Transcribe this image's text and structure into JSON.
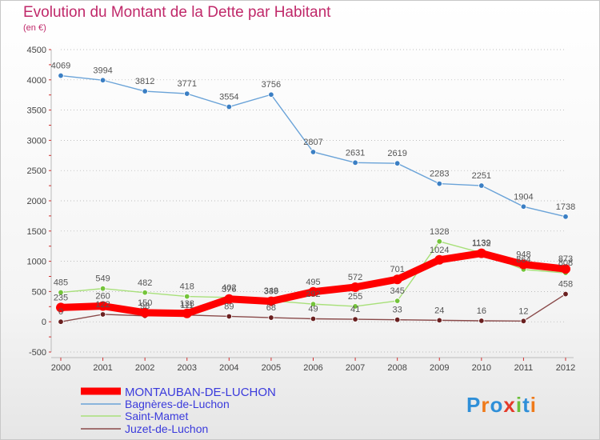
{
  "title": "Evolution du Montant de la Dette par Habitant",
  "subtitle": "(en €)",
  "logo_text": "Proxiti",
  "colors": {
    "title": "#c0296a",
    "grid": "#aaaaaa",
    "tick_red": "#d03030",
    "legend_text": "#3a3adc"
  },
  "chart_data": {
    "type": "line",
    "x": [
      "2000",
      "2001",
      "2002",
      "2003",
      "2004",
      "2005",
      "2006",
      "2007",
      "2008",
      "2009",
      "2010",
      "2011",
      "2012"
    ],
    "ylim": [
      -500,
      4500
    ],
    "yticks": [
      -500,
      0,
      500,
      1000,
      1500,
      2000,
      2500,
      3000,
      3500,
      4000,
      4500
    ],
    "grid": "horizontal dotted",
    "legend_position": "bottom-left",
    "series": [
      {
        "name": "MONTAUBAN-DE-LUCHON",
        "color": "#ff0000",
        "marker": "#ff0000",
        "values": [
          235,
          260,
          150,
          138,
          376,
          339,
          495,
          572,
          701,
          1024,
          1132,
          948,
          873
        ],
        "labels": [
          "235",
          "260",
          "150",
          "138",
          "376",
          "339",
          "495",
          "572",
          "701",
          "1024",
          "1132",
          "948",
          "873"
        ]
      },
      {
        "name": "Bagnères-de-Luchon",
        "color": "#6aa3d8",
        "marker": "#3b7fc4",
        "values": [
          4069,
          3994,
          3812,
          3771,
          3554,
          3756,
          2807,
          2631,
          2619,
          2283,
          2251,
          1904,
          1738
        ],
        "labels": [
          "4069",
          "3994",
          "3812",
          "3771",
          "3554",
          "3756",
          "2807",
          "2631",
          "2619",
          "2283",
          "2251",
          "1904",
          "1738"
        ]
      },
      {
        "name": "Saint-Mamet",
        "color": "#a8e07a",
        "marker": "#74c43a",
        "values": [
          485,
          549,
          482,
          418,
          402,
          348,
          292,
          255,
          345,
          1328,
          1139,
          864,
          808
        ],
        "labels": [
          "485",
          "549",
          "482",
          "418",
          "402",
          "348",
          "292",
          "255",
          "345",
          "1328",
          "1139",
          "864",
          "808"
        ]
      },
      {
        "name": "Juzet-de-Luchon",
        "color": "#8a4a4a",
        "marker": "#6a2020",
        "values": [
          0,
          122,
          98,
          111,
          89,
          68,
          49,
          41,
          33,
          24,
          16,
          12,
          458
        ],
        "labels": [
          "0",
          "122",
          "98",
          "111",
          "89",
          "68",
          "49",
          "41",
          "33",
          "24",
          "16",
          "12",
          "458"
        ]
      }
    ]
  }
}
